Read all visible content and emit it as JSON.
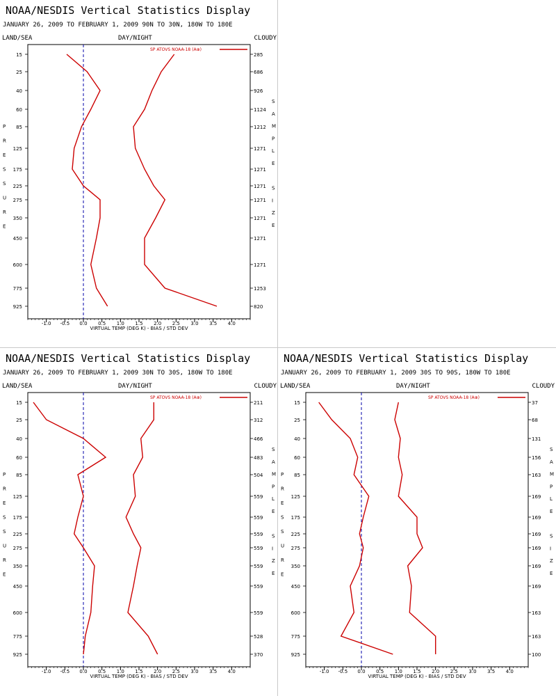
{
  "colors": {
    "line": "#cc0000",
    "zero_line": "#0000aa",
    "divider": "#c8c8c8"
  },
  "common": {
    "title": "NOAA/NESDIS Vertical Statistics Display",
    "land_sea": "LAND/SEA",
    "day_night": "DAY/NIGHT",
    "cloudy": "CLOUDY",
    "legend": "SP ATOVS NOAA-18 (A⊕)",
    "xlabel": "VIRTUAL TEMP (DEG K) - BIAS / STD DEV",
    "left_label": [
      "P",
      "R",
      "E",
      "S",
      "S",
      "U",
      "R",
      "E"
    ],
    "right_label": [
      "S",
      "A",
      "M",
      "P",
      "L",
      "E",
      "",
      "S",
      "I",
      "Z",
      "E"
    ]
  },
  "chart_data": [
    {
      "type": "line",
      "subtitle": "JANUARY 26, 2009 TO FEBRUARY 1, 2009 90N TO 30N, 180W TO 180E",
      "xlim": [
        -1.5,
        4.5
      ],
      "xticks": [
        -1.0,
        -0.5,
        0.0,
        0.5,
        1.0,
        1.5,
        2.0,
        2.5,
        3.0,
        3.5,
        4.0
      ],
      "pressure_levels": [
        15,
        25,
        40,
        60,
        85,
        125,
        175,
        225,
        275,
        350,
        450,
        600,
        775,
        925
      ],
      "sample_size": [
        "285",
        "686",
        "926",
        "1124",
        "1212",
        "1271",
        "1271",
        "1271",
        "1271",
        "1271",
        "1271",
        "1271",
        "1253",
        "820"
      ],
      "series": [
        {
          "values": [
            -0.45,
            0.1,
            0.45,
            0.2,
            -0.05,
            -0.25,
            -0.3,
            0.0,
            0.45,
            0.45,
            0.35,
            0.2,
            0.35,
            0.65
          ]
        },
        {
          "values": [
            2.45,
            2.1,
            1.85,
            1.65,
            1.35,
            1.4,
            1.65,
            1.9,
            2.2,
            1.95,
            1.65,
            1.65,
            2.2,
            3.6
          ]
        }
      ]
    },
    {
      "type": "line",
      "subtitle": "JANUARY 26, 2009 TO FEBRUARY 1, 2009 30N TO 30S, 180W TO 180E",
      "xlim": [
        -1.5,
        4.5
      ],
      "xticks": [
        -1.0,
        -0.5,
        0.0,
        0.5,
        1.0,
        1.5,
        2.0,
        2.5,
        3.0,
        3.5,
        4.0
      ],
      "pressure_levels": [
        15,
        25,
        40,
        60,
        85,
        125,
        175,
        225,
        275,
        350,
        450,
        600,
        775,
        925
      ],
      "sample_size": [
        "211",
        "312",
        "466",
        "483",
        "504",
        "559",
        "559",
        "559",
        "559",
        "559",
        "559",
        "559",
        "528",
        "370"
      ],
      "series": [
        {
          "values": [
            -1.35,
            -1.0,
            0.0,
            0.6,
            -0.15,
            0.0,
            -0.15,
            -0.25,
            0.0,
            0.3,
            0.25,
            0.2,
            0.05,
            0.0
          ]
        },
        {
          "values": [
            1.9,
            1.9,
            1.55,
            1.6,
            1.35,
            1.4,
            1.15,
            1.35,
            1.55,
            1.45,
            1.35,
            1.2,
            1.75,
            2.0
          ]
        }
      ]
    },
    {
      "type": "line",
      "subtitle": "JANUARY 26, 2009 TO FEBRUARY 1, 2009 30S TO 90S, 180W TO 180E",
      "xlim": [
        -1.5,
        4.5
      ],
      "xticks": [
        -1.0,
        -0.5,
        0.0,
        0.5,
        1.0,
        1.5,
        2.0,
        2.5,
        3.0,
        3.5,
        4.0
      ],
      "pressure_levels": [
        15,
        25,
        40,
        60,
        85,
        125,
        175,
        225,
        275,
        350,
        450,
        600,
        775,
        925
      ],
      "sample_size": [
        "37",
        "68",
        "131",
        "156",
        "163",
        "169",
        "169",
        "169",
        "169",
        "169",
        "169",
        "163",
        "163",
        "100"
      ],
      "series": [
        {
          "values": [
            -1.15,
            -0.8,
            -0.3,
            -0.1,
            -0.2,
            0.2,
            0.05,
            -0.05,
            0.05,
            -0.05,
            -0.3,
            -0.2,
            -0.55,
            0.85
          ]
        },
        {
          "values": [
            1.0,
            0.9,
            1.05,
            1.0,
            1.1,
            1.0,
            1.5,
            1.5,
            1.65,
            1.25,
            1.35,
            1.3,
            2.0,
            2.0
          ]
        }
      ]
    }
  ]
}
